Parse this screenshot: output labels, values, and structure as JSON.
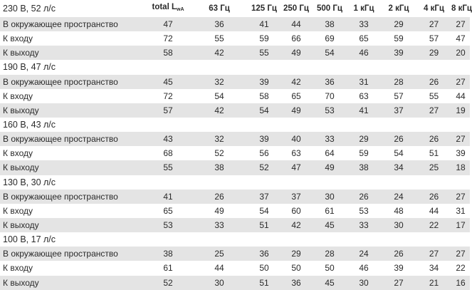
{
  "header": {
    "total": "total L",
    "total_subscript": "wA",
    "bands": [
      "63 Гц",
      "125 Гц",
      "250 Гц",
      "500 Гц",
      "1 кГц",
      "2 кГц",
      "4 кГц",
      "8 кГц"
    ]
  },
  "groups": [
    {
      "title": "230 В, 52 л/с",
      "rows": [
        {
          "label": "В окружающее пространство",
          "values": [
            47,
            36,
            41,
            44,
            38,
            33,
            29,
            27,
            27
          ]
        },
        {
          "label": "К входу",
          "values": [
            72,
            55,
            59,
            66,
            69,
            65,
            59,
            57,
            47
          ]
        },
        {
          "label": "К выходу",
          "values": [
            58,
            42,
            55,
            49,
            54,
            46,
            39,
            29,
            20
          ]
        }
      ]
    },
    {
      "title": "190 В, 47 л/с",
      "rows": [
        {
          "label": "В окружающее пространство",
          "values": [
            45,
            32,
            39,
            42,
            36,
            31,
            28,
            26,
            27
          ]
        },
        {
          "label": "К входу",
          "values": [
            72,
            54,
            58,
            65,
            70,
            63,
            57,
            55,
            44
          ]
        },
        {
          "label": "К выходу",
          "values": [
            57,
            42,
            54,
            49,
            53,
            41,
            37,
            27,
            19
          ]
        }
      ]
    },
    {
      "title": "160 В, 43 л/с",
      "rows": [
        {
          "label": "В окружающее пространство",
          "values": [
            43,
            32,
            39,
            40,
            33,
            29,
            26,
            26,
            27
          ]
        },
        {
          "label": "К входу",
          "values": [
            68,
            52,
            56,
            63,
            64,
            59,
            54,
            51,
            39
          ]
        },
        {
          "label": "К выходу",
          "values": [
            55,
            38,
            52,
            47,
            49,
            38,
            34,
            25,
            18
          ]
        }
      ]
    },
    {
      "title": "130 В, 30 л/с",
      "rows": [
        {
          "label": "В окружающее пространство",
          "values": [
            41,
            26,
            37,
            37,
            30,
            26,
            24,
            26,
            27
          ]
        },
        {
          "label": "К входу",
          "values": [
            65,
            49,
            54,
            60,
            61,
            53,
            48,
            44,
            31
          ]
        },
        {
          "label": "К выходу",
          "values": [
            53,
            33,
            51,
            42,
            45,
            33,
            30,
            22,
            17
          ]
        }
      ]
    },
    {
      "title": "100 В, 17 л/с",
      "rows": [
        {
          "label": "В окружающее пространство",
          "values": [
            38,
            25,
            36,
            29,
            28,
            24,
            26,
            27,
            27
          ]
        },
        {
          "label": "К входу",
          "values": [
            61,
            44,
            50,
            50,
            50,
            46,
            39,
            34,
            22
          ]
        },
        {
          "label": "К выходу",
          "values": [
            52,
            30,
            51,
            36,
            45,
            30,
            27,
            21,
            16
          ]
        }
      ]
    }
  ]
}
